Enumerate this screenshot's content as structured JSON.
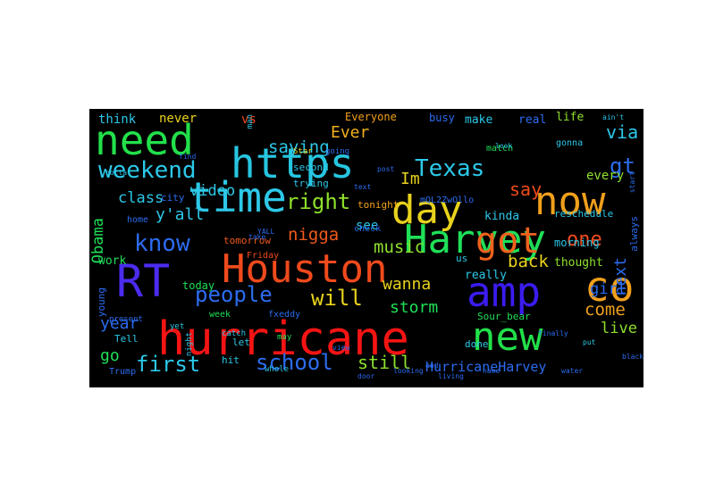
{
  "wordcloud": {
    "words": [
      {
        "text": "Houston",
        "color": "#f04a1c"
      },
      {
        "text": "hurricane",
        "color": "#f41414"
      },
      {
        "text": "Harvey",
        "color": "#1fe058"
      },
      {
        "text": "https",
        "color": "#26c6e0"
      },
      {
        "text": "need",
        "color": "#22e04a"
      },
      {
        "text": "time",
        "color": "#2ec8e8"
      },
      {
        "text": "day",
        "color": "#e8d21c"
      },
      {
        "text": "now",
        "color": "#f0a01c"
      },
      {
        "text": "amp",
        "color": "#3a1cf0"
      },
      {
        "text": "new",
        "color": "#22e04a"
      },
      {
        "text": "RT",
        "color": "#4a2cf0"
      },
      {
        "text": "got",
        "color": "#f0621c"
      },
      {
        "text": "co",
        "color": "#f0a01c"
      },
      {
        "text": "know",
        "color": "#2c6cf0"
      },
      {
        "text": "Texas",
        "color": "#2cc8e8"
      },
      {
        "text": "weekend",
        "color": "#2cc8e8"
      },
      {
        "text": "people",
        "color": "#2c6cf0"
      },
      {
        "text": "school",
        "color": "#2c6cf0"
      },
      {
        "text": "first",
        "color": "#2cc8e8"
      },
      {
        "text": "right",
        "color": "#8ee02c"
      },
      {
        "text": "will",
        "color": "#e8d21c"
      },
      {
        "text": "video",
        "color": "#2cc8e8"
      },
      {
        "text": "saying",
        "color": "#2cc8e8"
      },
      {
        "text": "Ever",
        "color": "#f0b01c"
      },
      {
        "text": "one",
        "color": "#f04a1c"
      },
      {
        "text": "nigga",
        "color": "#f05a1c"
      },
      {
        "text": "music",
        "color": "#8ee02c"
      },
      {
        "text": "wanna",
        "color": "#e8d21c"
      },
      {
        "text": "storm",
        "color": "#1fe058"
      },
      {
        "text": "still",
        "color": "#8ee02c"
      },
      {
        "text": "HurricaneHarvey",
        "color": "#2c6cf0"
      },
      {
        "text": "back",
        "color": "#e8d21c"
      },
      {
        "text": "come",
        "color": "#f0a01c"
      },
      {
        "text": "girl",
        "color": "#2c6cf0"
      },
      {
        "text": "live",
        "color": "#8ee02c"
      },
      {
        "text": "year",
        "color": "#2c6cf0"
      },
      {
        "text": "go",
        "color": "#1fe058"
      },
      {
        "text": "y'all",
        "color": "#2cc8e8"
      },
      {
        "text": "class",
        "color": "#2cc8e8"
      },
      {
        "text": "Obama",
        "color": "#1fe058"
      },
      {
        "text": "say",
        "color": "#f04a1c"
      },
      {
        "text": "Im",
        "color": "#e8d21c"
      },
      {
        "text": "gt",
        "color": "#2c6cf0"
      },
      {
        "text": "via",
        "color": "#2cc8e8"
      },
      {
        "text": "every",
        "color": "#8ee02c"
      },
      {
        "text": "next",
        "color": "#2c6cf0"
      },
      {
        "text": "think",
        "color": "#2cc8e8"
      },
      {
        "text": "never",
        "color": "#e8d21c"
      },
      {
        "text": "vs",
        "color": "#f04a1c"
      },
      {
        "text": "Everyone",
        "color": "#f0a01c"
      },
      {
        "text": "busy",
        "color": "#2c6cf0"
      },
      {
        "text": "make",
        "color": "#2cc8e8"
      },
      {
        "text": "real",
        "color": "#2c6cf0"
      },
      {
        "text": "life",
        "color": "#8ee02c"
      },
      {
        "text": "kinda",
        "color": "#2cc8e8"
      },
      {
        "text": "really",
        "color": "#2cc8e8"
      },
      {
        "text": "thought",
        "color": "#8ee02c"
      },
      {
        "text": "morning",
        "color": "#2cc8e8"
      },
      {
        "text": "reschedule",
        "color": "#2cc8e8"
      },
      {
        "text": "see",
        "color": "#2cc8e8"
      },
      {
        "text": "work",
        "color": "#1fe058"
      },
      {
        "text": "today",
        "color": "#1fe058"
      },
      {
        "text": "tomorrow",
        "color": "#f05a1c"
      },
      {
        "text": "tonight",
        "color": "#f0a01c"
      },
      {
        "text": "Tell",
        "color": "#2cc8e8"
      },
      {
        "text": "young",
        "color": "#2c6cf0"
      },
      {
        "text": "done",
        "color": "#2cc8e8"
      },
      {
        "text": "always",
        "color": "#2c6cf0"
      },
      {
        "text": "us",
        "color": "#2cc8e8"
      },
      {
        "text": "week",
        "color": "#1fe058"
      },
      {
        "text": "Friday",
        "color": "#f04a1c"
      },
      {
        "text": "Trump",
        "color": "#2c6cf0"
      },
      {
        "text": "second",
        "color": "#2cc8e8"
      },
      {
        "text": "trying",
        "color": "#2cc8e8"
      },
      {
        "text": "mQL2ZwOllo",
        "color": "#2c6cf0"
      },
      {
        "text": "gonna",
        "color": "#2cc8e8"
      },
      {
        "text": "match",
        "color": "#1fe058"
      },
      {
        "text": "Sour_bear",
        "color": "#1fe058"
      },
      {
        "text": "hit",
        "color": "#2cc8e8"
      },
      {
        "text": "let",
        "color": "#2cc8e8"
      },
      {
        "text": "may",
        "color": "#1fe058"
      },
      {
        "text": "whole",
        "color": "#2cc8e8"
      },
      {
        "text": "check",
        "color": "#2c6cf0"
      },
      {
        "text": "man",
        "color": "#2cc8e8"
      },
      {
        "text": "Star",
        "color": "#e8d21c"
      },
      {
        "text": "going",
        "color": "#2c6cf0"
      },
      {
        "text": "city",
        "color": "#2c6cf0"
      },
      {
        "text": "home",
        "color": "#2c6cf0"
      },
      {
        "text": "fxeddy",
        "color": "#2c6cf0"
      },
      {
        "text": "catch",
        "color": "#2cc8e8"
      },
      {
        "text": "night",
        "color": "#2cc8e8"
      },
      {
        "text": "present",
        "color": "#2c6cf0"
      },
      {
        "text": "yet",
        "color": "#2cc8e8"
      },
      {
        "text": "put",
        "color": "#2cc8e8"
      },
      {
        "text": "finally",
        "color": "#2c6cf0"
      },
      {
        "text": "black",
        "color": "#2c6cf0"
      },
      {
        "text": "start",
        "color": "#2c6cf0"
      },
      {
        "text": "look",
        "color": "#2cc8e8"
      },
      {
        "text": "ain't",
        "color": "#2cc8e8"
      },
      {
        "text": "gotta",
        "color": "#2cc8e8"
      },
      {
        "text": "water",
        "color": "#2c6cf0"
      },
      {
        "text": "looking",
        "color": "#2c6cf0"
      },
      {
        "text": "living",
        "color": "#2c6cf0"
      },
      {
        "text": "end",
        "color": "#2c6cf0"
      },
      {
        "text": "name",
        "color": "#2c6cf0"
      },
      {
        "text": "door",
        "color": "#2c6cf0"
      },
      {
        "text": "YALL",
        "color": "#2c6cf0"
      },
      {
        "text": "post",
        "color": "#2c6cf0"
      },
      {
        "text": "find",
        "color": "#2c6cf0"
      },
      {
        "text": "take",
        "color": "#2c6cf0"
      },
      {
        "text": "view",
        "color": "#2c6cf0"
      },
      {
        "text": "text",
        "color": "#2c6cf0"
      }
    ]
  }
}
